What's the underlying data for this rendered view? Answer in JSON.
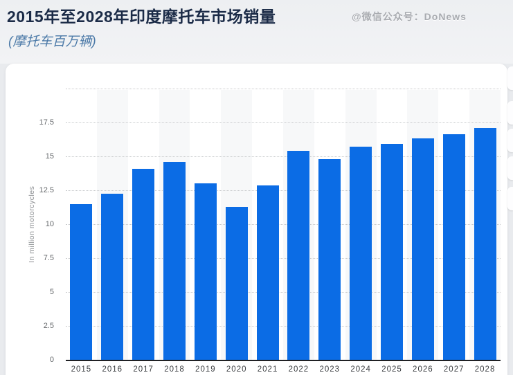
{
  "header": {
    "title": "2015年至2028年印度摩托车市场销量",
    "subtitle": "(摩托车百万辆)",
    "watermark": "@微信公众号：DoNews"
  },
  "chart_data": {
    "type": "bar",
    "title": "2015年至2028年印度摩托车市场销量",
    "subtitle_units": "(摩托车百万辆)",
    "categories": [
      "2015",
      "2016",
      "2017",
      "2018",
      "2019",
      "2020",
      "2021",
      "2022",
      "2023",
      "2024",
      "2025",
      "2026",
      "2027",
      "2028"
    ],
    "values": [
      11.5,
      12.25,
      14.1,
      14.6,
      13.0,
      11.3,
      12.85,
      15.4,
      14.8,
      15.7,
      15.9,
      16.35,
      16.65,
      17.1
    ],
    "xlabel": "",
    "ylabel": "In million motorcycles",
    "ylim": [
      0,
      20
    ],
    "ytick_interval": 2.5,
    "ytick_labels": [
      "0",
      "2.5",
      "5",
      "7.5",
      "10",
      "12.5",
      "15",
      "17.5"
    ],
    "grid": "horizontal-dotted",
    "legend": "none",
    "bar_color": "#0b6ce5",
    "stripe_color": "#f7f8f9",
    "alternating_column_stripes": true
  },
  "colors": {
    "title": "#1b2b47",
    "subtitle": "#4c7aa8",
    "watermark": "#a8abb0",
    "header_bg": "#f0f1f4",
    "page_bg": "#e9ebee",
    "card_bg": "#ffffff",
    "gridline": "#c6c8ca",
    "axis_line": "#202124",
    "tick_text": "#66696c",
    "x_label_text": "#3a3d40"
  }
}
